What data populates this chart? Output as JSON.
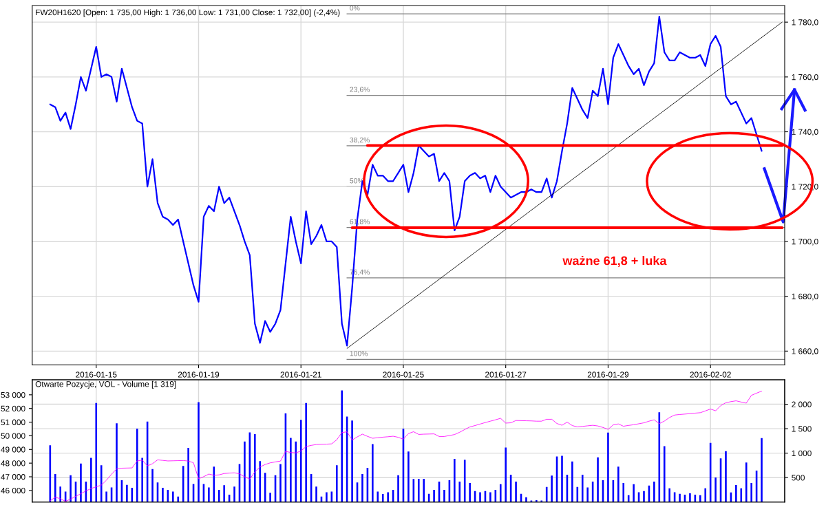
{
  "chart_data": [
    {
      "type": "line",
      "title": "FW20H1620 [Open: 1 735,00 High: 1 736,00 Low: 1 731,00 Close: 1 732,00] (-2,4%)",
      "categories": [
        null,
        null,
        null,
        null,
        null,
        null,
        null,
        null,
        null,
        null,
        null,
        null,
        "2016-01-15",
        null,
        null,
        null,
        null,
        null,
        null,
        null,
        null,
        null,
        null,
        null,
        null,
        null,
        null,
        null,
        null,
        null,
        null,
        null,
        "2016-01-19",
        null,
        null,
        null,
        null,
        null,
        null,
        null,
        null,
        null,
        null,
        null,
        null,
        null,
        null,
        null,
        null,
        null,
        null,
        null,
        "2016-01-21",
        null,
        null,
        null,
        null,
        null,
        null,
        null,
        null,
        null,
        null,
        null,
        null,
        null,
        null,
        null,
        null,
        null,
        null,
        null,
        "2016-01-25",
        null,
        null,
        null,
        null,
        null,
        null,
        null,
        null,
        null,
        null,
        null,
        null,
        null,
        null,
        null,
        null,
        null,
        null,
        null,
        "2016-01-27",
        null,
        null,
        null,
        null,
        null,
        null,
        null,
        null,
        null,
        null,
        null,
        null,
        null,
        null,
        null,
        null,
        null,
        null,
        null,
        "2016-01-29",
        null,
        null,
        null,
        null,
        null,
        null,
        null,
        null,
        null,
        null,
        null,
        null,
        null,
        null,
        null,
        null,
        null,
        null,
        null,
        "2016-02-02",
        null,
        null,
        null,
        null,
        null,
        null,
        null,
        null,
        null,
        null,
        null,
        null,
        null,
        null
      ],
      "ylim": [
        1655,
        1786
      ],
      "yticks": [
        {
          "value": 1660,
          "label": "1 660,0"
        },
        {
          "value": 1680,
          "label": "1 680,0"
        },
        {
          "value": 1700,
          "label": "1 700,0"
        },
        {
          "value": 1720,
          "label": "1 720,0"
        },
        {
          "value": 1740,
          "label": "1 740,0"
        },
        {
          "value": 1760,
          "label": "1 760,0"
        },
        {
          "value": 1780,
          "label": "1 780,0"
        }
      ],
      "grid": true,
      "series": [
        {
          "color": "#0000ff",
          "values": [
            null,
            null,
            null,
            1750,
            1749,
            1744,
            1747,
            1741,
            1750,
            1760,
            1755,
            1763,
            1771,
            1760,
            1761,
            1760,
            1751,
            1763,
            1756,
            1749,
            1744,
            1743,
            1720,
            1730,
            1714,
            1709,
            1708,
            1706,
            1708,
            1700,
            1692,
            1684,
            1678,
            1709,
            1713,
            1711,
            1720,
            1714,
            1716,
            1711,
            1706,
            1700,
            1695,
            1670,
            1663,
            1671,
            1667,
            1670,
            1675,
            1692,
            1709,
            1700,
            1692,
            1711,
            1699,
            1702,
            1706,
            1700,
            1700,
            1698,
            1670,
            1662,
            1683,
            1708,
            1722,
            1717,
            1728,
            1724,
            1724,
            1722,
            1722,
            1725,
            1728,
            1718,
            1725,
            1735,
            1733,
            1731,
            1732,
            1722,
            1725,
            1722,
            1704,
            1709,
            1722,
            1724,
            1725,
            1723,
            1724,
            1718,
            1724,
            1720,
            1718,
            1716,
            1717,
            1718,
            1718,
            1719,
            1718,
            1718,
            1723,
            1716,
            1722,
            1733,
            1743,
            1756,
            1752,
            1748,
            1745,
            1755,
            1753,
            1763,
            1750,
            1767,
            1772,
            1768,
            1764,
            1761,
            1763,
            1757,
            1762,
            1765,
            1782,
            1769,
            1766,
            1766,
            1769,
            1768,
            1767,
            1767,
            1768,
            1764,
            1772,
            1775,
            1771,
            1753,
            1750,
            1751,
            1747,
            1743,
            1745,
            1739,
            1733,
            null,
            null,
            null,
            null
          ]
        },
        {
          "color": "#000000",
          "values": [
            null,
            null,
            null,
            null,
            null,
            null,
            null,
            null,
            null,
            null,
            null,
            null,
            null,
            null,
            null,
            null,
            null,
            null,
            null,
            null,
            null,
            null,
            null,
            null,
            null,
            null,
            null,
            null,
            null,
            null,
            null,
            null,
            null,
            null,
            null,
            null,
            null,
            null,
            null,
            null,
            null,
            null,
            null,
            null,
            null,
            null,
            null,
            null,
            null,
            null,
            null,
            null,
            null,
            null,
            null,
            null,
            null,
            null,
            null,
            null,
            null,
            1661,
            null,
            null,
            null,
            null,
            null,
            null,
            null,
            null,
            null,
            null,
            null,
            null,
            null,
            null,
            null,
            null,
            null,
            null,
            null,
            null,
            null,
            null,
            null,
            null,
            null,
            null,
            null,
            null,
            null,
            null,
            null,
            null,
            null,
            null,
            null,
            null,
            null,
            null,
            null,
            null,
            null,
            null,
            null,
            null,
            null,
            null,
            null,
            null,
            null,
            null,
            null,
            null,
            null,
            null,
            null,
            null,
            null,
            null,
            null,
            null,
            null,
            null,
            null,
            null,
            null,
            null,
            null,
            null,
            null,
            null,
            null,
            null,
            null,
            null,
            null,
            null,
            null,
            null,
            null,
            null,
            null,
            null,
            null,
            null,
            1780
          ]
        },
        {
          "color": "#ff0000",
          "values": [
            null,
            null,
            null,
            null,
            null,
            null,
            null,
            null,
            null,
            null,
            null,
            null,
            null,
            null,
            null,
            null,
            null,
            null,
            null,
            null,
            null,
            null,
            null,
            null,
            null,
            null,
            null,
            null,
            null,
            null,
            null,
            null,
            null,
            null,
            null,
            null,
            null,
            null,
            null,
            null,
            null,
            null,
            null,
            null,
            null,
            null,
            null,
            null,
            null,
            null,
            null,
            null,
            null,
            null,
            null,
            null,
            null,
            null,
            null,
            null,
            null,
            null,
            null,
            null,
            null,
            1735,
            null,
            null,
            null,
            null,
            null,
            null,
            null,
            null,
            null,
            null,
            null,
            null,
            null,
            null,
            null,
            null,
            null,
            null,
            null,
            null,
            null,
            null,
            null,
            null,
            null,
            null,
            null,
            null,
            null,
            null,
            null,
            null,
            null,
            null,
            null,
            null,
            null,
            null,
            null,
            null,
            null,
            null,
            null,
            null,
            null,
            null,
            null,
            null,
            null,
            null,
            null,
            null,
            null,
            null,
            null,
            null,
            null,
            null,
            null,
            null,
            null,
            null,
            null,
            null,
            null,
            null,
            null,
            null,
            null,
            null,
            null,
            null,
            null,
            null,
            null,
            null,
            null,
            null,
            null,
            null,
            1735
          ]
        },
        {
          "color": "#ff0000",
          "values": [
            null,
            null,
            null,
            null,
            null,
            null,
            null,
            null,
            null,
            null,
            null,
            null,
            null,
            null,
            null,
            null,
            null,
            null,
            null,
            null,
            null,
            null,
            null,
            null,
            null,
            null,
            null,
            null,
            null,
            null,
            null,
            null,
            null,
            null,
            null,
            null,
            null,
            null,
            null,
            null,
            null,
            null,
            null,
            null,
            null,
            null,
            null,
            null,
            null,
            null,
            null,
            null,
            null,
            null,
            null,
            null,
            null,
            null,
            null,
            null,
            null,
            null,
            1705,
            null,
            null,
            null,
            null,
            null,
            null,
            null,
            null,
            null,
            null,
            null,
            null,
            null,
            null,
            null,
            null,
            null,
            null,
            null,
            null,
            null,
            null,
            null,
            null,
            null,
            null,
            null,
            null,
            null,
            null,
            null,
            null,
            null,
            null,
            null,
            null,
            null,
            null,
            null,
            null,
            null,
            null,
            null,
            null,
            null,
            null,
            null,
            null,
            null,
            null,
            null,
            null,
            null,
            null,
            null,
            null,
            null,
            null,
            null,
            null,
            null,
            null,
            null,
            null,
            null,
            null,
            null,
            null,
            null,
            null,
            null,
            null,
            null,
            null,
            null,
            null,
            null,
            null,
            null,
            null,
            null,
            null,
            null,
            1705
          ]
        }
      ],
      "ref_lines": [
        {
          "axis": "y",
          "value": 1783,
          "color": "#808080"
        },
        {
          "axis": "y",
          "value": 1753.3,
          "color": "#808080"
        },
        {
          "axis": "y",
          "value": 1734.9,
          "color": "#808080"
        },
        {
          "axis": "y",
          "value": 1720,
          "color": "#808080"
        },
        {
          "axis": "y",
          "value": 1705.1,
          "color": "#808080"
        },
        {
          "axis": "y",
          "value": 1686.7,
          "color": "#808080"
        },
        {
          "axis": "y",
          "value": 1657,
          "color": "#808080"
        }
      ],
      "annotations": [
        {
          "text": "0%",
          "y": 1783
        },
        {
          "text": "23,6%",
          "y": 1753.3
        },
        {
          "text": "38,2%",
          "y": 1734.9
        },
        {
          "text": "50%",
          "y": 1720
        },
        {
          "text": "61,8%",
          "y": 1705.1
        },
        {
          "text": "76,4%",
          "y": 1686.7
        },
        {
          "text": "100%",
          "y": 1657
        },
        "ważne 61,8 + luka"
      ]
    },
    {
      "type": "bar",
      "title": "Otwarte Pozycje, VOL - Volume [1 319]",
      "categories": [
        null,
        null,
        null,
        null,
        null,
        null,
        null,
        null,
        null,
        null,
        null,
        null,
        null,
        null,
        null,
        null,
        null,
        null,
        null,
        null,
        null,
        null,
        null,
        null,
        null,
        null,
        null,
        null,
        null,
        null,
        null,
        null,
        null,
        null,
        null,
        null,
        null,
        null,
        null,
        null,
        null,
        null,
        null,
        null,
        null,
        null,
        null,
        null,
        null,
        null,
        null,
        null,
        null,
        null,
        null,
        null,
        null,
        null,
        null,
        null,
        null,
        null,
        null,
        null,
        null,
        null,
        null,
        null,
        null,
        null,
        null,
        null,
        null,
        null,
        null,
        null,
        null,
        null,
        null,
        null,
        null,
        null,
        null,
        null,
        null,
        null,
        null,
        null,
        null,
        null,
        null,
        null,
        null,
        null,
        null,
        null,
        null,
        null,
        null,
        null,
        null,
        null,
        null,
        null,
        null,
        null,
        null,
        null,
        null,
        null,
        null,
        null,
        null,
        null,
        null,
        null,
        null,
        null,
        null,
        null,
        null,
        null,
        null,
        null,
        null,
        null,
        null,
        null,
        null,
        null,
        null,
        null,
        null,
        null,
        null,
        null,
        null,
        null,
        null,
        null,
        null,
        null,
        null,
        null,
        null,
        null,
        null
      ],
      "ylim": [
        45150,
        54100
      ],
      "yticks": [
        {
          "value": 46000,
          "label": "46 000"
        },
        {
          "value": 47000,
          "label": "47 000"
        },
        {
          "value": 48000,
          "label": "48 000"
        },
        {
          "value": 49000,
          "label": "49 000"
        },
        {
          "value": 50000,
          "label": "50 000"
        },
        {
          "value": 51000,
          "label": "51 000"
        },
        {
          "value": 52000,
          "label": "52 000"
        },
        {
          "value": 53000,
          "label": "53 000"
        }
      ],
      "y2lim": [
        0,
        2500
      ],
      "y2ticks": [
        {
          "value": 500,
          "label": "500"
        },
        {
          "value": 1000,
          "label": "1 000"
        },
        {
          "value": 1500,
          "label": "1 500"
        },
        {
          "value": 2000,
          "label": "2 000"
        }
      ],
      "grid": true,
      "series": [
        {
          "axis": "y2",
          "color": "#0000ff",
          "values": [
            null,
            null,
            null,
            1160,
            573,
            318,
            216,
            548,
            420,
            787,
            420,
            905,
            2027,
            752,
            216,
            300,
            1609,
            446,
            350,
            293,
            1502,
            905,
            1645,
            675,
            400,
            293,
            250,
            216,
            114,
            737,
            1109,
            369,
            2043,
            369,
            300,
            726,
            250,
            344,
            150,
            318,
            777,
            1236,
            1425,
            1390,
            838,
            599,
            191,
            548,
            777,
            1813,
            1313,
            1236,
            1680,
            2027,
            573,
            318,
            114,
            200,
            216,
            752,
            2282,
            1747,
            1665,
            400,
            573,
            701,
            1185,
            216,
            165,
            200,
            250,
            548,
            1502,
            1032,
            471,
            475,
            475,
            169,
            250,
            420,
            250,
            447,
            881,
            420,
            864,
            392,
            225,
            200,
            225,
            200,
            250,
            364,
            1114,
            558,
            420,
            169,
            100,
            31,
            40,
            31,
            308,
            542,
            931,
            947,
            558,
            831,
            308,
            558,
            300,
            420,
            914,
            447,
            1419,
            447,
            725,
            392,
            142,
            364,
            200,
            225,
            336,
            420,
            1836,
            1142,
            281,
            200,
            169,
            150,
            181,
            150,
            142,
            281,
            1208,
            503,
            892,
            1042,
            197,
            347,
            281,
            808,
            392,
            642,
            1308,
            null,
            null,
            null,
            null
          ]
        },
        {
          "type": "line",
          "axis": "y",
          "color": "#ff00ff",
          "values": [
            null,
            null,
            null,
            45250,
            45500,
            45400,
            45200,
            45370,
            45570,
            45760,
            45970,
            46140,
            46270,
            46390,
            46750,
            47190,
            47580,
            47630,
            47640,
            47650,
            48160,
            48220,
            47800,
            47960,
            48240,
            48200,
            48160,
            48170,
            48180,
            48190,
            48150,
            48030,
            46850,
            47010,
            47200,
            47110,
            47140,
            47240,
            47270,
            47290,
            47220,
            46990,
            46840,
            47360,
            47720,
            47900,
            48020,
            48090,
            48150,
            48860,
            48780,
            48750,
            48890,
            49210,
            49300,
            49360,
            49380,
            49390,
            49410,
            49710,
            50240,
            50290,
            49690,
            49920,
            50120,
            49960,
            49820,
            49860,
            49900,
            49930,
            49970,
            49890,
            49750,
            50160,
            50300,
            50100,
            50120,
            50130,
            50140,
            49950,
            49950,
            50020,
            50090,
            50260,
            50460,
            50650,
            50750,
            50860,
            50970,
            51070,
            51170,
            51280,
            50930,
            50950,
            51120,
            51110,
            51100,
            51090,
            51070,
            51070,
            51210,
            51210,
            50900,
            50770,
            51000,
            50750,
            50650,
            50690,
            50730,
            50770,
            50720,
            50610,
            50470,
            50800,
            50870,
            50700,
            50760,
            50810,
            50880,
            50950,
            51070,
            51170,
            50890,
            51080,
            51340,
            51520,
            51560,
            51590,
            51620,
            51660,
            51690,
            51820,
            51960,
            51830,
            52210,
            52420,
            52500,
            52560,
            52470,
            52390,
            52960,
            53120,
            53270,
            null,
            null,
            null,
            null
          ]
        }
      ]
    }
  ]
}
